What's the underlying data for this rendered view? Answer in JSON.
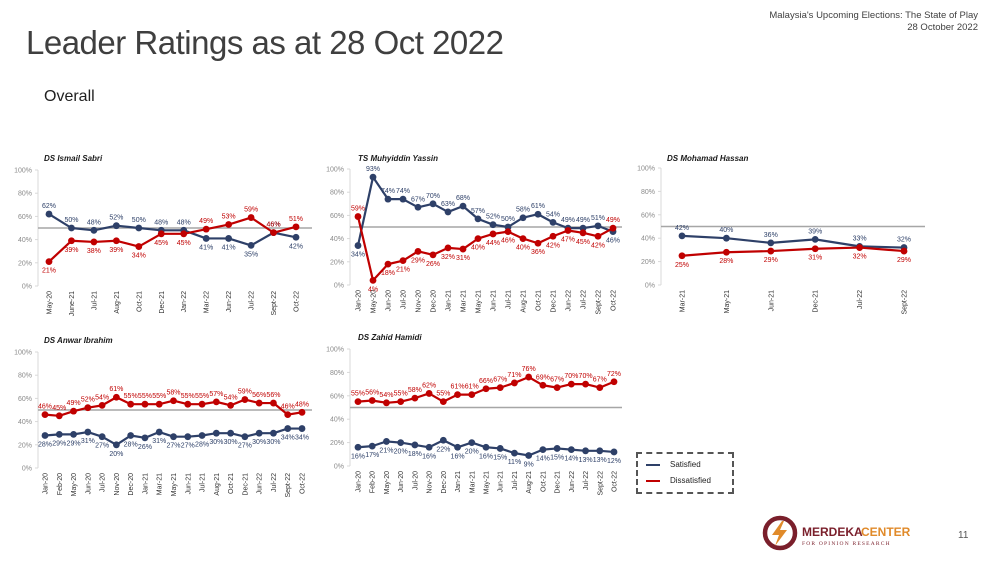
{
  "header": {
    "note_line1": "Malaysia's Upcoming Elections: The State of Play",
    "note_line2": "28 October 2022",
    "title": "Leader Ratings as at 28 Oct 2022",
    "section": "Overall"
  },
  "colors": {
    "satisfied": "#2e4068",
    "dissatisfied": "#c00000",
    "reference_line": "#a6a6a6"
  },
  "legend": {
    "satisfied_label": "Satisfied",
    "dissatisfied_label": "Dissatisfied"
  },
  "footer": {
    "logo_text_main": "MERDEKA",
    "logo_text_accent": "CENTER",
    "logo_subtitle": "FOR OPINION RESEARCH",
    "page_number": "11"
  },
  "chart_data": [
    {
      "type": "line",
      "title": "DS Ismail Sabri",
      "categories": [
        "May-20",
        "June-21",
        "Jul-21",
        "Aug-21",
        "Oct-21",
        "Dec-21",
        "Jan-22",
        "Mar-22",
        "Jun-22",
        "Jul-22",
        "Sept-22",
        "Oct-22"
      ],
      "series": [
        {
          "name": "Satisfied",
          "values": [
            62,
            50,
            48,
            52,
            50,
            48,
            48,
            41,
            41,
            35,
            46,
            42
          ]
        },
        {
          "name": "Dissatisfied",
          "values": [
            21,
            39,
            38,
            39,
            34,
            45,
            45,
            49,
            53,
            59,
            46,
            51
          ]
        }
      ],
      "ylim": [
        0,
        100
      ],
      "yticks": [
        "0%",
        "20%",
        "40%",
        "60%",
        "80%",
        "100%"
      ],
      "reference_line": 50,
      "value_suffix": "%"
    },
    {
      "type": "line",
      "title": "TS Muhyiddin Yassin",
      "categories": [
        "Jan-20",
        "May-20",
        "Jun-20",
        "Jul-20",
        "Nov-20",
        "Dec-20",
        "Jan-21",
        "Mar-21",
        "May-21",
        "Jun-21",
        "Jul-21",
        "Aug-21",
        "Oct-21",
        "Dec-21",
        "Jun-22",
        "Jul-22",
        "Sept-22",
        "Oct-22"
      ],
      "series": [
        {
          "name": "Satisfied",
          "values": [
            34,
            93,
            74,
            74,
            67,
            70,
            63,
            68,
            57,
            52,
            50,
            58,
            61,
            54,
            49,
            49,
            51,
            46
          ]
        },
        {
          "name": "Dissatisfied",
          "values": [
            59,
            4,
            18,
            21,
            29,
            26,
            32,
            31,
            40,
            44,
            46,
            40,
            36,
            42,
            47,
            45,
            42,
            49
          ]
        }
      ],
      "ylim": [
        0,
        100
      ],
      "yticks": [
        "0%",
        "20%",
        "40%",
        "60%",
        "80%",
        "100%"
      ],
      "reference_line": 50,
      "value_suffix": "%"
    },
    {
      "type": "line",
      "title": "DS Mohamad Hassan",
      "categories": [
        "Mar-21",
        "May-21",
        "Jun-21",
        "Dec-21",
        "Jul-22",
        "Sept-22"
      ],
      "series": [
        {
          "name": "Satisfied",
          "values": [
            42,
            40,
            36,
            39,
            33,
            32
          ]
        },
        {
          "name": "Dissatisfied",
          "values": [
            25,
            28,
            29,
            31,
            32,
            29
          ]
        }
      ],
      "ylim": [
        0,
        100
      ],
      "yticks": [
        "0%",
        "20%",
        "40%",
        "60%",
        "80%",
        "100%"
      ],
      "reference_line": 50,
      "value_suffix": "%"
    },
    {
      "type": "line",
      "title": "DS Anwar Ibrahim",
      "categories": [
        "Jan-20",
        "Feb-20",
        "May-20",
        "Jun-20",
        "Jul-20",
        "Nov-20",
        "Dec-20",
        "Jan-21",
        "Mar-21",
        "May-21",
        "Jun-21",
        "Jul-21",
        "Aug-21",
        "Oct-21",
        "Dec-21",
        "Jun-22",
        "Jul-22",
        "Sept-22",
        "Oct-22"
      ],
      "series": [
        {
          "name": "Satisfied",
          "values": [
            28,
            29,
            29,
            31,
            27,
            20,
            28,
            26,
            31,
            27,
            27,
            28,
            30,
            30,
            27,
            30,
            30,
            34,
            34
          ]
        },
        {
          "name": "Dissatisfied",
          "values": [
            46,
            45,
            49,
            52,
            54,
            61,
            55,
            55,
            55,
            58,
            55,
            55,
            57,
            54,
            59,
            56,
            56,
            46,
            48
          ]
        }
      ],
      "ylim": [
        0,
        100
      ],
      "yticks": [
        "0%",
        "20%",
        "40%",
        "60%",
        "80%",
        "100%"
      ],
      "reference_line": 50,
      "value_suffix": "%"
    },
    {
      "type": "line",
      "title": "DS Zahid Hamidi",
      "categories": [
        "Jan-20",
        "Feb-20",
        "May-20",
        "Jun-20",
        "Jul-20",
        "Nov-20",
        "Dec-20",
        "Jan-21",
        "Mar-21",
        "May-21",
        "Jun-21",
        "Jul-21",
        "Aug-21",
        "Oct-21",
        "Dec-21",
        "Jun-22",
        "Jul-22",
        "Sept-22",
        "Oct-22"
      ],
      "series": [
        {
          "name": "Satisfied",
          "values": [
            16,
            17,
            21,
            20,
            18,
            16,
            22,
            16,
            20,
            16,
            15,
            11,
            9,
            14,
            15,
            14,
            13,
            13,
            12
          ]
        },
        {
          "name": "Dissatisfied",
          "values": [
            55,
            56,
            54,
            55,
            58,
            62,
            55,
            61,
            61,
            66,
            67,
            71,
            76,
            69,
            67,
            70,
            70,
            67,
            72
          ]
        }
      ],
      "ylim": [
        0,
        100
      ],
      "yticks": [
        "0%",
        "20%",
        "40%",
        "60%",
        "80%",
        "100%"
      ],
      "reference_line": 50,
      "value_suffix": "%"
    }
  ]
}
